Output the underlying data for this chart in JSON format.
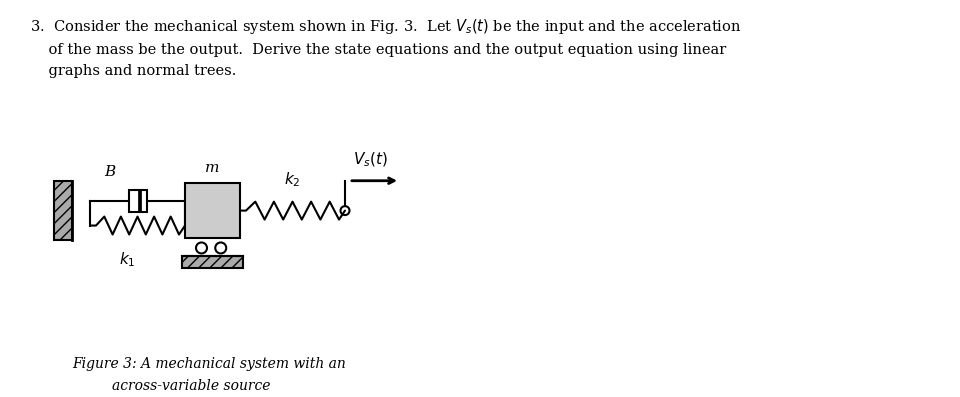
{
  "fig_caption_line1": "Figure 3: A mechanical system with an",
  "fig_caption_line2": "across-variable source",
  "label_B": "B",
  "label_m": "m",
  "label_k1": "$k_1$",
  "label_k2": "$k_2$",
  "label_Vs": "$V_s(t)$",
  "bg_color": "#ffffff",
  "wall_hatch_color": "#aaaaaa",
  "mass_color": "#cccccc",
  "ground_color": "#aaaaaa",
  "line_color": "#000000"
}
